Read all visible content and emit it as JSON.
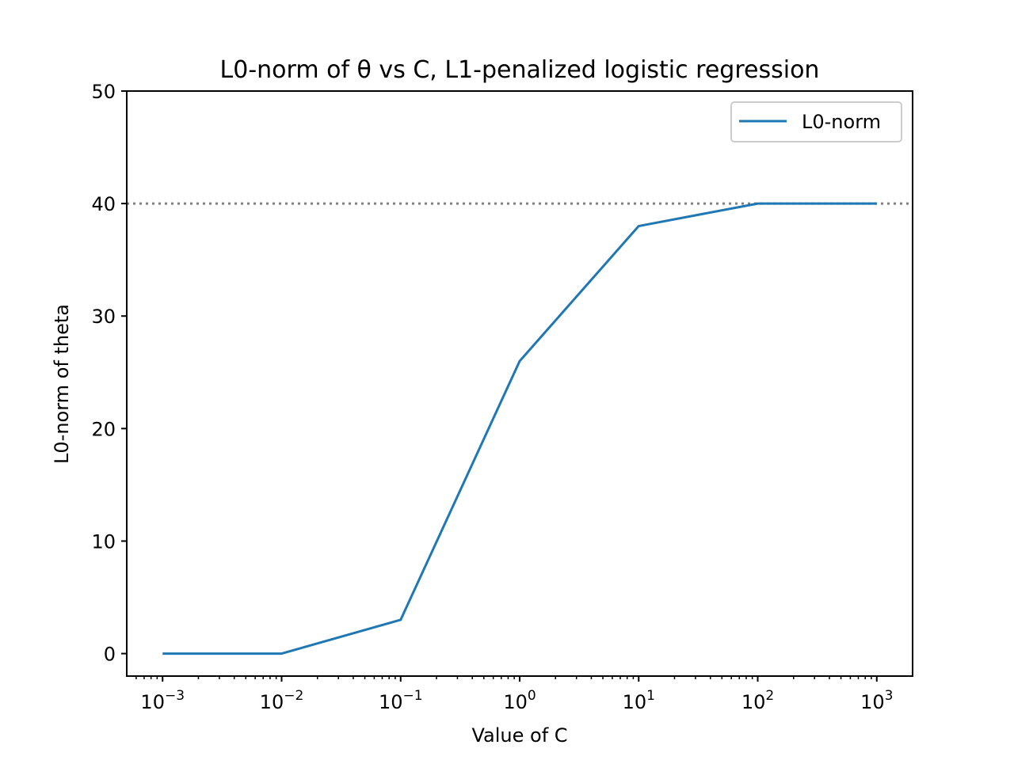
{
  "chart_data": {
    "type": "line",
    "title": "L0-norm of θ vs C, L1-penalized logistic regression",
    "xlabel": "Value of C",
    "ylabel": "L0-norm of theta",
    "x_scale": "log",
    "xlim": [
      0.0005,
      2000
    ],
    "ylim": [
      -2,
      50
    ],
    "x_ticks": [
      {
        "value": 0.001,
        "base": "10",
        "exp": "−3"
      },
      {
        "value": 0.01,
        "base": "10",
        "exp": "−2"
      },
      {
        "value": 0.1,
        "base": "10",
        "exp": "−1"
      },
      {
        "value": 1,
        "base": "10",
        "exp": "0"
      },
      {
        "value": 10,
        "base": "10",
        "exp": "1"
      },
      {
        "value": 100,
        "base": "10",
        "exp": "2"
      },
      {
        "value": 1000,
        "base": "10",
        "exp": "3"
      }
    ],
    "y_ticks": [
      0,
      10,
      20,
      30,
      40,
      50
    ],
    "series": [
      {
        "name": "L0-norm",
        "color": "#1f77b4",
        "x": [
          0.001,
          0.01,
          0.1,
          1,
          10,
          100,
          1000
        ],
        "y": [
          0,
          0,
          3,
          26,
          38,
          40,
          40
        ]
      }
    ],
    "reference_line": {
      "y": 40,
      "color": "#808080",
      "style": "dotted"
    },
    "legend": {
      "position": "top-right"
    },
    "grid": false
  }
}
